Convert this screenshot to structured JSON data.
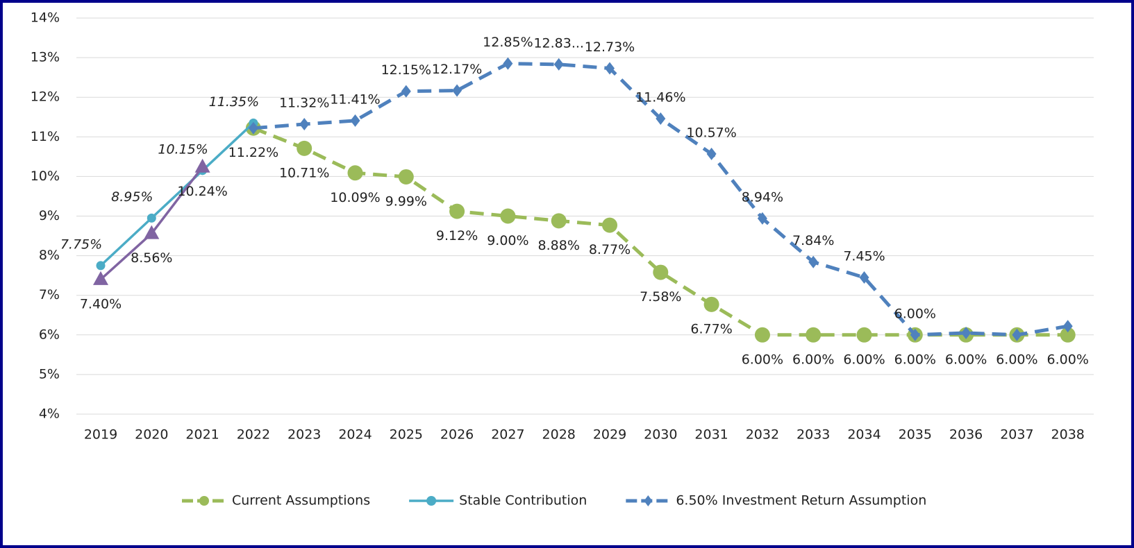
{
  "chart_data": {
    "type": "line",
    "categories": [
      "2019",
      "2020",
      "2021",
      "2022",
      "2023",
      "2024",
      "2025",
      "2026",
      "2027",
      "2028",
      "2029",
      "2030",
      "2031",
      "2032",
      "2033",
      "2034",
      "2035",
      "2036",
      "2037",
      "2038"
    ],
    "ylim": [
      4,
      14
    ],
    "yticks": [
      {
        "value": 4,
        "label": "4%"
      },
      {
        "value": 5,
        "label": "5%"
      },
      {
        "value": 6,
        "label": "6%"
      },
      {
        "value": 7,
        "label": "7%"
      },
      {
        "value": 8,
        "label": "8%"
      },
      {
        "value": 9,
        "label": "9%"
      },
      {
        "value": 10,
        "label": "10%"
      },
      {
        "value": 11,
        "label": "11%"
      },
      {
        "value": 12,
        "label": "12%"
      },
      {
        "value": 13,
        "label": "13%"
      },
      {
        "value": 14,
        "label": "14%"
      }
    ],
    "grid": true,
    "legend": "bottom",
    "series": [
      {
        "name": "Current Assumptions",
        "color": "#9bbb59",
        "dashed": true,
        "marker": "circle",
        "label_position": "below",
        "values": [
          null,
          null,
          null,
          11.22,
          10.71,
          10.09,
          9.99,
          9.12,
          9.0,
          8.88,
          8.77,
          7.58,
          6.77,
          6.0,
          6.0,
          6.0,
          6.0,
          6.0,
          6.0,
          6.0
        ],
        "value_labels": [
          null,
          null,
          null,
          "11.22%",
          "10.71%",
          "10.09%",
          "9.99%",
          "9.12%",
          "9.00%",
          "8.88%",
          "8.77%",
          "7.58%",
          "6.77%",
          "6.00%",
          "6.00%",
          "6.00%",
          "6.00%",
          "6.00%",
          "6.00%",
          "6.00%"
        ]
      },
      {
        "name": "Stable Contribution",
        "color": "#4bacc6",
        "dashed": false,
        "marker": "dot",
        "label_position": "above",
        "italic_labels": true,
        "values": [
          7.75,
          8.95,
          10.15,
          11.35,
          null,
          null,
          null,
          null,
          null,
          null,
          null,
          null,
          null,
          null,
          null,
          null,
          null,
          null,
          null,
          null
        ],
        "value_labels": [
          "7.75%",
          "8.95%",
          "10.15%",
          "11.35%",
          null,
          null,
          null,
          null,
          null,
          null,
          null,
          null,
          null,
          null,
          null,
          null,
          null,
          null,
          null,
          null
        ]
      },
      {
        "name": "6.50% Investment Return Assumption",
        "color": "#4f81bd",
        "dashed": true,
        "marker": "diamond",
        "label_position": "above",
        "values": [
          null,
          null,
          null,
          11.22,
          11.32,
          11.41,
          12.15,
          12.17,
          12.85,
          12.83,
          12.73,
          11.46,
          10.57,
          8.94,
          7.84,
          7.45,
          6.0,
          6.05,
          6.0,
          6.22
        ],
        "value_labels": [
          null,
          null,
          null,
          null,
          "11.32%",
          "11.41%",
          "12.15%",
          "12.17%",
          "12.85%",
          "12.83...",
          "12.73%",
          "11.46%",
          "10.57%",
          "8.94%",
          "7.84%",
          "7.45%",
          "6.00%",
          null,
          null,
          null
        ]
      },
      {
        "color": "#8064a2",
        "dashed": false,
        "marker": "triangle",
        "label_position": "below",
        "values": [
          7.4,
          8.56,
          10.24,
          null,
          null,
          null,
          null,
          null,
          null,
          null,
          null,
          null,
          null,
          null,
          null,
          null,
          null,
          null,
          null,
          null
        ],
        "value_labels": [
          "7.40%",
          "8.56%",
          "10.24%",
          null,
          null,
          null,
          null,
          null,
          null,
          null,
          null,
          null,
          null,
          null,
          null,
          null,
          null,
          null,
          null,
          null
        ]
      }
    ]
  }
}
